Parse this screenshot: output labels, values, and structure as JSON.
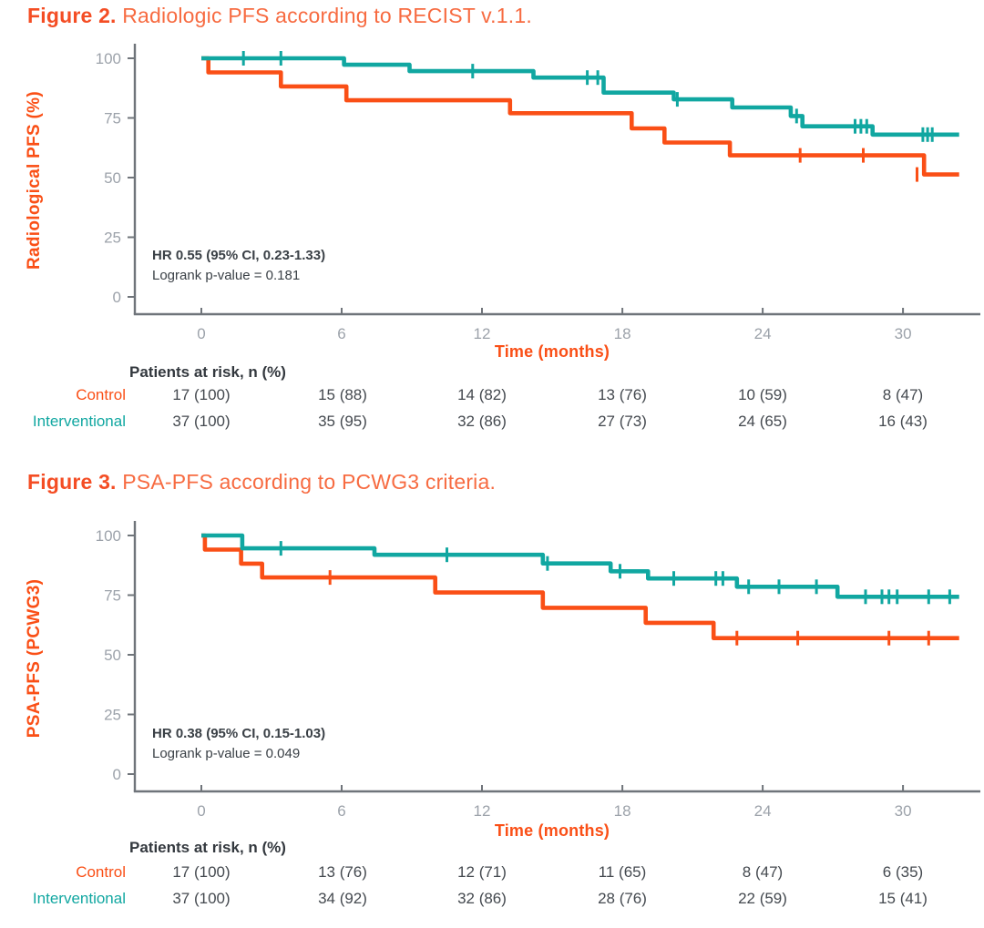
{
  "colors": {
    "control": "#FA4F16",
    "interventional": "#11A7A1",
    "title_strong": "#F44D24",
    "title_soft": "#F76B41",
    "axis": "#6F747A",
    "tick_label": "#9CA2AA",
    "annotation_text": "#3A4046",
    "risk_text": "#44494F"
  },
  "chart_data": [
    {
      "type": "line",
      "variant": "kaplan-meier-step",
      "title_bold": "Figure 2.",
      "title_rest": "Radiologic PFS according to RECIST v.1.1.",
      "ylabel": "Radiological PFS (%)",
      "xlabel": "Time (months)",
      "ylim": [
        0,
        100
      ],
      "xlim": [
        0,
        33.3
      ],
      "y_ticks": [
        100,
        75,
        50,
        25,
        0
      ],
      "x_ticks": [
        0,
        6,
        12,
        18,
        24,
        30
      ],
      "grid": "off",
      "legend": "none",
      "annotation": {
        "line1": "HR 0.55 (95% CI, 0.23-1.33)",
        "line2": "Logrank p-value = 0.181"
      },
      "series": [
        {
          "name": "Control",
          "color": "#FA4F16",
          "end_time": 32.4,
          "steps": [
            [
              0,
              100
            ],
            [
              0.3,
              94.1
            ],
            [
              3.4,
              88.2
            ],
            [
              6.2,
              82.4
            ],
            [
              13.2,
              77.0
            ],
            [
              18.4,
              70.6
            ],
            [
              19.8,
              64.7
            ],
            [
              22.6,
              59.3
            ],
            [
              30.9,
              51.3
            ]
          ],
          "censors": [
            [
              25.6,
              59.3
            ],
            [
              28.3,
              59.3
            ],
            [
              30.6,
              51.3
            ]
          ]
        },
        {
          "name": "Interventional",
          "color": "#11A7A1",
          "end_time": 32.4,
          "steps": [
            [
              0,
              100
            ],
            [
              6.1,
              97.3
            ],
            [
              8.9,
              94.6
            ],
            [
              14.2,
              91.9
            ],
            [
              17.2,
              85.6
            ],
            [
              20.2,
              82.8
            ],
            [
              22.7,
              79.4
            ],
            [
              25.2,
              75.8
            ],
            [
              25.7,
              71.5
            ],
            [
              28.7,
              68.0
            ]
          ],
          "censors": [
            [
              1.8,
              100
            ],
            [
              3.4,
              100
            ],
            [
              11.6,
              94.6
            ],
            [
              16.5,
              91.9
            ],
            [
              16.95,
              91.9
            ],
            [
              20.35,
              82.8
            ],
            [
              25.45,
              75.8
            ],
            [
              27.95,
              71.5
            ],
            [
              28.2,
              71.5
            ],
            [
              28.45,
              71.5
            ],
            [
              30.85,
              68.0
            ],
            [
              31.05,
              68.0
            ],
            [
              31.25,
              68.0
            ]
          ]
        }
      ],
      "risk_table": {
        "header": "Patients at risk, n (%)",
        "rows": [
          {
            "label": "Control",
            "color": "#FA4F16",
            "values": [
              "17 (100)",
              "15 (88)",
              "14 (82)",
              "13 (76)",
              "10 (59)",
              "8 (47)"
            ]
          },
          {
            "label": "Interventional",
            "color": "#11A7A1",
            "values": [
              "37 (100)",
              "35 (95)",
              "32 (86)",
              "27 (73)",
              "24 (65)",
              "16 (43)"
            ]
          }
        ]
      }
    },
    {
      "type": "line",
      "variant": "kaplan-meier-step",
      "title_bold": "Figure 3.",
      "title_rest": "PSA-PFS according to PCWG3 criteria.",
      "ylabel": "PSA-PFS (PCWG3)",
      "xlabel": "Time (months)",
      "ylim": [
        0,
        100
      ],
      "xlim": [
        0,
        33.3
      ],
      "y_ticks": [
        100,
        75,
        50,
        25,
        0
      ],
      "x_ticks": [
        0,
        6,
        12,
        18,
        24,
        30
      ],
      "grid": "off",
      "legend": "none",
      "annotation": {
        "line1": "HR 0.38 (95% CI, 0.15-1.03)",
        "line2": "Logrank p-value = 0.049"
      },
      "series": [
        {
          "name": "Control",
          "color": "#FA4F16",
          "end_time": 32.4,
          "steps": [
            [
              0,
              100
            ],
            [
              0.15,
              94.1
            ],
            [
              1.7,
              88.2
            ],
            [
              2.6,
              82.4
            ],
            [
              10.0,
              76.1
            ],
            [
              14.6,
              69.7
            ],
            [
              19.0,
              63.4
            ],
            [
              21.9,
              57.0
            ]
          ],
          "censors": [
            [
              5.5,
              82.4
            ],
            [
              22.9,
              57.0
            ],
            [
              25.5,
              57.0
            ],
            [
              29.4,
              57.0
            ],
            [
              31.1,
              57.0
            ]
          ]
        },
        {
          "name": "Interventional",
          "color": "#11A7A1",
          "end_time": 32.4,
          "steps": [
            [
              0,
              100
            ],
            [
              1.75,
              94.6
            ],
            [
              7.4,
              91.9
            ],
            [
              14.6,
              88.3
            ],
            [
              17.5,
              85.0
            ],
            [
              19.1,
              82.0
            ],
            [
              22.9,
              78.5
            ],
            [
              27.2,
              74.3
            ]
          ],
          "censors": [
            [
              3.4,
              94.6
            ],
            [
              10.5,
              91.9
            ],
            [
              14.8,
              88.3
            ],
            [
              17.9,
              85.0
            ],
            [
              20.2,
              82.0
            ],
            [
              22.0,
              82.0
            ],
            [
              22.3,
              82.0
            ],
            [
              23.4,
              78.5
            ],
            [
              24.7,
              78.5
            ],
            [
              26.3,
              78.5
            ],
            [
              28.4,
              74.3
            ],
            [
              29.1,
              74.3
            ],
            [
              29.4,
              74.3
            ],
            [
              29.75,
              74.3
            ],
            [
              31.1,
              74.3
            ],
            [
              32.0,
              74.3
            ]
          ]
        }
      ],
      "risk_table": {
        "header": "Patients at risk, n (%)",
        "rows": [
          {
            "label": "Control",
            "color": "#FA4F16",
            "values": [
              "17 (100)",
              "13 (76)",
              "12 (71)",
              "11 (65)",
              "8 (47)",
              "6 (35)"
            ]
          },
          {
            "label": "Interventional",
            "color": "#11A7A1",
            "values": [
              "37 (100)",
              "34 (92)",
              "32 (86)",
              "28 (76)",
              "22 (59)",
              "15 (41)"
            ]
          }
        ]
      }
    }
  ]
}
